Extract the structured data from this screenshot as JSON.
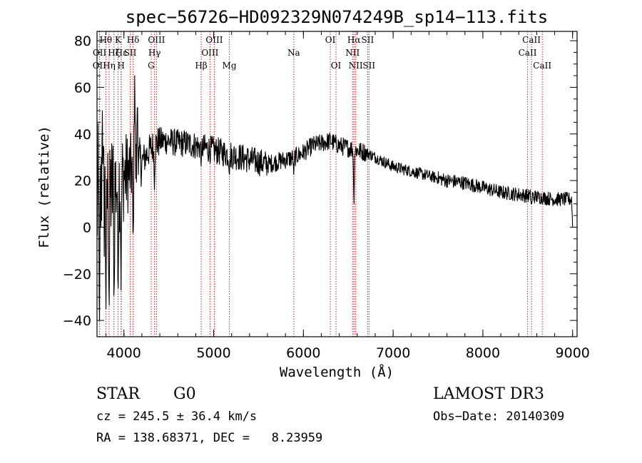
{
  "chart_data": {
    "type": "line",
    "title": "spec−56726−HD092329N074249B_sp14−113.fits",
    "xlabel": "Wavelength (Å)",
    "ylabel": "Flux (relative)",
    "xlim": [
      3700,
      9050
    ],
    "ylim": [
      -47,
      84
    ],
    "xticks": [
      4000,
      5000,
      6000,
      7000,
      8000,
      9000
    ],
    "yticks": [
      -40,
      -20,
      0,
      20,
      40,
      60,
      80
    ],
    "xtick_labels": [
      "4000",
      "5000",
      "6000",
      "7000",
      "8000",
      "9000"
    ],
    "ytick_labels": [
      "−40",
      "−20",
      "0",
      "20",
      "40",
      "60",
      "80"
    ],
    "grid": false,
    "series": [
      {
        "name": "flux",
        "continuum": [
          [
            3700,
            10
          ],
          [
            3800,
            12
          ],
          [
            3900,
            18
          ],
          [
            4000,
            22
          ],
          [
            4100,
            25
          ],
          [
            4200,
            28
          ],
          [
            4300,
            34
          ],
          [
            4400,
            37
          ],
          [
            4500,
            37
          ],
          [
            4600,
            36
          ],
          [
            4700,
            36
          ],
          [
            4800,
            35
          ],
          [
            4900,
            34
          ],
          [
            5000,
            33
          ],
          [
            5100,
            32
          ],
          [
            5200,
            31
          ],
          [
            5300,
            30
          ],
          [
            5400,
            29
          ],
          [
            5500,
            28
          ],
          [
            5600,
            27
          ],
          [
            5700,
            28
          ],
          [
            5800,
            29
          ],
          [
            5900,
            30
          ],
          [
            6000,
            32
          ],
          [
            6100,
            35
          ],
          [
            6200,
            36
          ],
          [
            6300,
            37
          ],
          [
            6400,
            35
          ],
          [
            6500,
            34
          ],
          [
            6600,
            33
          ],
          [
            6700,
            32
          ],
          [
            6800,
            30
          ],
          [
            6900,
            28
          ],
          [
            7000,
            26
          ],
          [
            7200,
            24
          ],
          [
            7400,
            22
          ],
          [
            7600,
            20
          ],
          [
            7800,
            19
          ],
          [
            8000,
            17
          ],
          [
            8200,
            15
          ],
          [
            8400,
            14
          ],
          [
            8600,
            13
          ],
          [
            8800,
            12
          ],
          [
            9000,
            12
          ]
        ],
        "features": [
          {
            "x": 3728,
            "y": -40
          },
          {
            "x": 3760,
            "y": 50
          },
          {
            "x": 3800,
            "y": -35
          },
          {
            "x": 3835,
            "y": -38
          },
          {
            "x": 3890,
            "y": -36
          },
          {
            "x": 3934,
            "y": -32
          },
          {
            "x": 3968,
            "y": -27
          },
          {
            "x": 4102,
            "y": -10
          },
          {
            "x": 4120,
            "y": 65
          },
          {
            "x": 4150,
            "y": 58
          },
          {
            "x": 4340,
            "y": 16
          },
          {
            "x": 4861,
            "y": 26
          },
          {
            "x": 5175,
            "y": 22
          },
          {
            "x": 5893,
            "y": 22
          },
          {
            "x": 6563,
            "y": 8
          },
          {
            "x": 8542,
            "y": 9
          },
          {
            "x": 9000,
            "y": 0
          }
        ]
      }
    ],
    "lines": [
      {
        "name": "OII",
        "wavelength": 3727,
        "row": 2
      },
      {
        "name": "OII",
        "wavelength": 3729,
        "row": 1
      },
      {
        "name": "Hθ",
        "wavelength": 3798,
        "row": 0
      },
      {
        "name": "Hη",
        "wavelength": 3835,
        "row": 2
      },
      {
        "name": "Hζ",
        "wavelength": 3889,
        "row": 1
      },
      {
        "name": "K",
        "wavelength": 3934,
        "row": 0
      },
      {
        "name": "H",
        "wavelength": 3968,
        "row": 2
      },
      {
        "name": "Hε",
        "wavelength": 3970,
        "row": 1
      },
      {
        "name": "SII",
        "wavelength": 4070,
        "row": 1
      },
      {
        "name": "Hδ",
        "wavelength": 4102,
        "row": 0
      },
      {
        "name": "G",
        "wavelength": 4304,
        "row": 2
      },
      {
        "name": "Hγ",
        "wavelength": 4341,
        "row": 1
      },
      {
        "name": "OIII",
        "wavelength": 4363,
        "row": 0
      },
      {
        "name": "Hβ",
        "wavelength": 4861,
        "row": 2
      },
      {
        "name": "OIII",
        "wavelength": 4959,
        "row": 1
      },
      {
        "name": "OIII",
        "wavelength": 5007,
        "row": 0
      },
      {
        "name": "Mg",
        "wavelength": 5175,
        "row": 2
      },
      {
        "name": "Na",
        "wavelength": 5893,
        "row": 1
      },
      {
        "name": "OI",
        "wavelength": 6300,
        "row": 0
      },
      {
        "name": "OI",
        "wavelength": 6363,
        "row": 2
      },
      {
        "name": "NII",
        "wavelength": 6548,
        "row": 1
      },
      {
        "name": "Hα",
        "wavelength": 6563,
        "row": 0
      },
      {
        "name": "NII",
        "wavelength": 6583,
        "row": 2
      },
      {
        "name": "SII",
        "wavelength": 6716,
        "row": 0
      },
      {
        "name": "SII",
        "wavelength": 6731,
        "row": 2
      },
      {
        "name": "CaII",
        "wavelength": 8498,
        "row": 1
      },
      {
        "name": "CaII",
        "wavelength": 8542,
        "row": 0
      },
      {
        "name": "CaII",
        "wavelength": 8662,
        "row": 2
      }
    ]
  },
  "info": {
    "class_label": "STAR",
    "subclass": "G0",
    "survey": "LAMOST DR3",
    "redshift": "cz = 245.5 ± 36.4 km/s",
    "obs_date": "Obs−Date: 20140309",
    "coords": "RA = 138.68371, DEC =   8.23959"
  },
  "colors": {
    "spectrum": "#000000",
    "line_markers": "#cc2222",
    "axes": "#000000"
  }
}
